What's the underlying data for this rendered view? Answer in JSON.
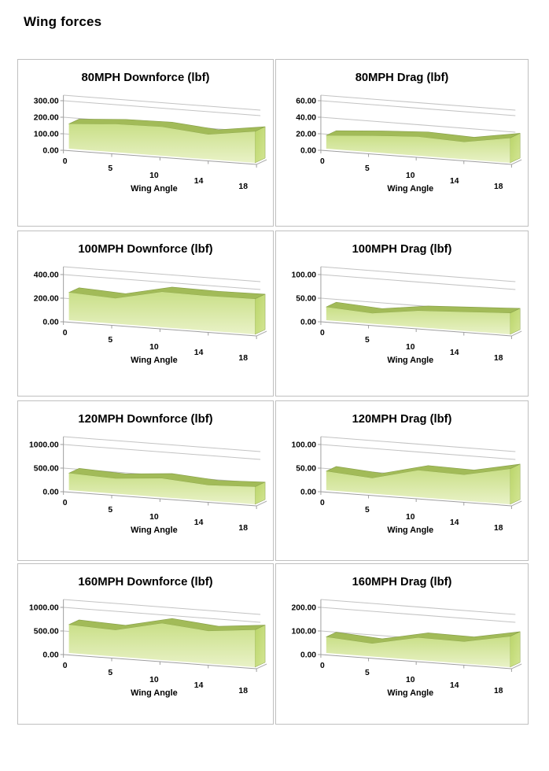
{
  "page": {
    "title": "Wing forces"
  },
  "colors": {
    "area_top_strip": "#a2bb58",
    "area_edge": "#8aa24b",
    "area_front_top": "#c9df87",
    "area_front_bottom": "#e9f2c7",
    "area_cap_top": "#b9d468",
    "area_cap_bottom": "#d4e695",
    "gridline": "#c3c3c3",
    "axis_line": "#9e9e9e",
    "floor_line": "#aeaeae",
    "box_border": "#bfbfbf",
    "text": "#000000",
    "background": "#ffffff"
  },
  "chart_data": [
    {
      "type": "area",
      "title": "80MPH Downforce (lbf)",
      "xlabel": "Wing Angle",
      "categories": [
        "0",
        "5",
        "10",
        "14",
        "18"
      ],
      "values": [
        150,
        170,
        175,
        150,
        190
      ],
      "ytick_labels": [
        "0.00",
        "100.00",
        "200.00",
        "300.00"
      ],
      "ylim": [
        0,
        300
      ]
    },
    {
      "type": "area",
      "title": "80MPH Drag (lbf)",
      "xlabel": "Wing Angle",
      "categories": [
        "0",
        "5",
        "10",
        "14",
        "18"
      ],
      "values": [
        16,
        20,
        23,
        21,
        30
      ],
      "ytick_labels": [
        "0.00",
        "20.00",
        "40.00",
        "60.00"
      ],
      "ylim": [
        0,
        60
      ]
    },
    {
      "type": "area",
      "title": "100MPH Downforce (lbf)",
      "xlabel": "Wing Angle",
      "categories": [
        "0",
        "5",
        "10",
        "14",
        "18"
      ],
      "values": [
        235,
        215,
        300,
        295,
        300
      ],
      "ytick_labels": [
        "0.00",
        "200.00",
        "400.00"
      ],
      "ylim": [
        0,
        400
      ]
    },
    {
      "type": "area",
      "title": "100MPH Drag (lbf)",
      "xlabel": "Wing Angle",
      "categories": [
        "0",
        "5",
        "10",
        "14",
        "18"
      ],
      "values": [
        28,
        22,
        35,
        40,
        45
      ],
      "ytick_labels": [
        "0.00",
        "50.00",
        "100.00"
      ],
      "ylim": [
        0,
        100
      ]
    },
    {
      "type": "area",
      "title": "120MPH Downforce (lbf)",
      "xlabel": "Wing Angle",
      "categories": [
        "0",
        "5",
        "10",
        "14",
        "18"
      ],
      "values": [
        360,
        320,
        400,
        330,
        370
      ],
      "ytick_labels": [
        "0.00",
        "500.00",
        "1000.00"
      ],
      "ylim": [
        0,
        1000
      ]
    },
    {
      "type": "area",
      "title": "120MPH Drag (lbf)",
      "xlabel": "Wing Angle",
      "categories": [
        "0",
        "5",
        "10",
        "14",
        "18"
      ],
      "values": [
        40,
        33,
        57,
        55,
        75
      ],
      "ytick_labels": [
        "0.00",
        "50.00",
        "100.00"
      ],
      "ylim": [
        0,
        100
      ]
    },
    {
      "type": "area",
      "title": "160MPH Downforce (lbf)",
      "xlabel": "Wing Angle",
      "categories": [
        "0",
        "5",
        "10",
        "14",
        "18"
      ],
      "values": [
        600,
        560,
        780,
        690,
        790
      ],
      "ytick_labels": [
        "0.00",
        "500.00",
        "1000.00"
      ],
      "ylim": [
        0,
        1000
      ]
    },
    {
      "type": "area",
      "title": "160MPH Drag (lbf)",
      "xlabel": "Wing Angle",
      "categories": [
        "0",
        "5",
        "10",
        "14",
        "18"
      ],
      "values": [
        68,
        55,
        95,
        93,
        130
      ],
      "ytick_labels": [
        "0.00",
        "100.00",
        "200.00"
      ],
      "ylim": [
        0,
        200
      ]
    }
  ]
}
